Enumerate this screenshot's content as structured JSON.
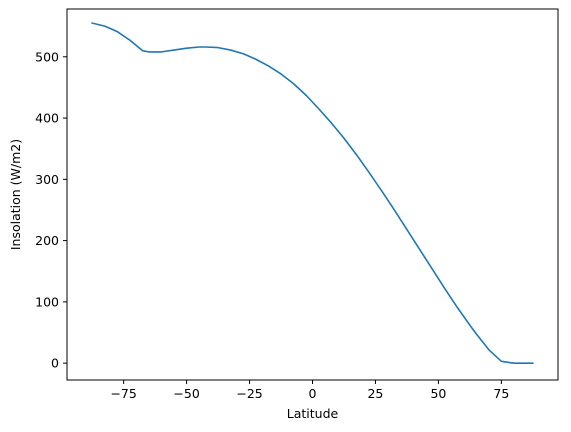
{
  "chart_data": {
    "type": "line",
    "title": "",
    "xlabel": "Latitude",
    "ylabel": "Insolation (W/m2)",
    "xlim": [
      -97.5,
      97.5
    ],
    "ylim": [
      -27.5,
      578
    ],
    "x_ticks": [
      {
        "value": -75,
        "label": "−75"
      },
      {
        "value": -50,
        "label": "−50"
      },
      {
        "value": -25,
        "label": "−25"
      },
      {
        "value": 0,
        "label": "0"
      },
      {
        "value": 25,
        "label": "25"
      },
      {
        "value": 50,
        "label": "50"
      },
      {
        "value": 75,
        "label": "75"
      }
    ],
    "y_ticks": [
      {
        "value": 0,
        "label": "0"
      },
      {
        "value": 100,
        "label": "100"
      },
      {
        "value": 200,
        "label": "200"
      },
      {
        "value": 300,
        "label": "300"
      },
      {
        "value": 400,
        "label": "400"
      },
      {
        "value": 500,
        "label": "500"
      }
    ],
    "grid": false,
    "legend": "none",
    "series": [
      {
        "color": "#1f77b4",
        "x": [
          -87.5,
          -82.5,
          -77.5,
          -72.5,
          -67.5,
          -65,
          -60,
          -55,
          -50,
          -45,
          -42.5,
          -37.5,
          -32.5,
          -27.5,
          -22.5,
          -17.5,
          -12.5,
          -7.5,
          -2.5,
          2.5,
          7.5,
          12.5,
          17.5,
          22.5,
          27.5,
          32.5,
          37.5,
          42.5,
          47.5,
          52.5,
          57.5,
          62.5,
          65,
          70,
          75,
          80,
          85,
          87.5
        ],
        "y": [
          555,
          550,
          541,
          527,
          510,
          508,
          508,
          511,
          514,
          516,
          516,
          515,
          511,
          505,
          496,
          485,
          472,
          456,
          437,
          415,
          392,
          367,
          340,
          311,
          281,
          250,
          218,
          186,
          154,
          122,
          91,
          62,
          48,
          22,
          3,
          0,
          0,
          0
        ]
      }
    ]
  }
}
